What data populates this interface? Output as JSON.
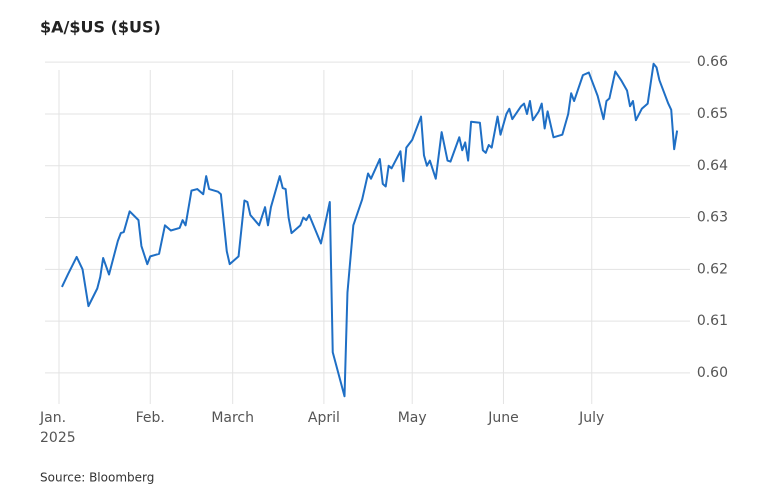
{
  "chart_data": {
    "type": "line",
    "title": "$A/$US ($US)",
    "source": "Source: Bloomberg",
    "x_year": "2025",
    "xlim": [
      0,
      212
    ],
    "xticks": [
      {
        "value": 0,
        "label": "Jan."
      },
      {
        "value": 31,
        "label": "Feb."
      },
      {
        "value": 59,
        "label": "March"
      },
      {
        "value": 90,
        "label": "April"
      },
      {
        "value": 120,
        "label": "May"
      },
      {
        "value": 151,
        "label": "June"
      },
      {
        "value": 181,
        "label": "July"
      }
    ],
    "ylim": [
      0.594,
      0.661
    ],
    "yticks": [
      {
        "value": 0.6,
        "label": "0.60"
      },
      0.61,
      0.62,
      0.63,
      0.64,
      0.65,
      0.66
    ],
    "grid": true,
    "series": [
      {
        "color": "#1f6fc5",
        "x": [
          1,
          3,
          6,
          8,
          10,
          13,
          14,
          15,
          17,
          20,
          21,
          22,
          24,
          27,
          28,
          30,
          31,
          34,
          36,
          38,
          41,
          42,
          43,
          45,
          47,
          49,
          50,
          51,
          54,
          55,
          57,
          58,
          61,
          63,
          64,
          65,
          68,
          70,
          71,
          72,
          75,
          76,
          77,
          78,
          79,
          82,
          83,
          84,
          85,
          89,
          92,
          93,
          97,
          98,
          100,
          103,
          105,
          106,
          109,
          110,
          111,
          112,
          113,
          116,
          117,
          118,
          120,
          123,
          124,
          125,
          126,
          128,
          130,
          132,
          133,
          136,
          137,
          138,
          139,
          140,
          143,
          144,
          145,
          146,
          147,
          149,
          150,
          152,
          153,
          154,
          157,
          158,
          159,
          160,
          161,
          163,
          164,
          165,
          166,
          168,
          171,
          173,
          174,
          175,
          178,
          180,
          181,
          183,
          185,
          186,
          187,
          189,
          191,
          193,
          194,
          195,
          196,
          198,
          200,
          202,
          203,
          204,
          207,
          208,
          209,
          210
        ],
        "values": [
          0.6166,
          0.619,
          0.6224,
          0.62,
          0.6129,
          0.6163,
          0.6185,
          0.6222,
          0.619,
          0.6255,
          0.627,
          0.6272,
          0.6312,
          0.6295,
          0.6245,
          0.621,
          0.6225,
          0.623,
          0.6285,
          0.6275,
          0.628,
          0.6295,
          0.6285,
          0.6352,
          0.6355,
          0.6345,
          0.638,
          0.6355,
          0.635,
          0.6345,
          0.6235,
          0.621,
          0.6225,
          0.6333,
          0.633,
          0.6305,
          0.6285,
          0.632,
          0.6285,
          0.632,
          0.638,
          0.6357,
          0.6355,
          0.63,
          0.627,
          0.6285,
          0.63,
          0.6295,
          0.6305,
          0.625,
          0.633,
          0.604,
          0.5955,
          0.6155,
          0.6285,
          0.6335,
          0.6385,
          0.6375,
          0.6413,
          0.6365,
          0.636,
          0.64,
          0.6395,
          0.6428,
          0.637,
          0.6435,
          0.645,
          0.6495,
          0.642,
          0.64,
          0.641,
          0.6375,
          0.6465,
          0.641,
          0.6408,
          0.6455,
          0.643,
          0.6445,
          0.641,
          0.6485,
          0.6483,
          0.643,
          0.6425,
          0.644,
          0.6435,
          0.6495,
          0.646,
          0.65,
          0.651,
          0.649,
          0.6515,
          0.652,
          0.65,
          0.6525,
          0.6488,
          0.6505,
          0.652,
          0.6472,
          0.6505,
          0.6455,
          0.646,
          0.65,
          0.654,
          0.6525,
          0.6575,
          0.658,
          0.6565,
          0.6535,
          0.649,
          0.6525,
          0.653,
          0.6582,
          0.6565,
          0.6545,
          0.6515,
          0.6525,
          0.6488,
          0.651,
          0.652,
          0.6597,
          0.659,
          0.6565,
          0.652,
          0.6508,
          0.6432,
          0.6468
        ]
      }
    ]
  }
}
